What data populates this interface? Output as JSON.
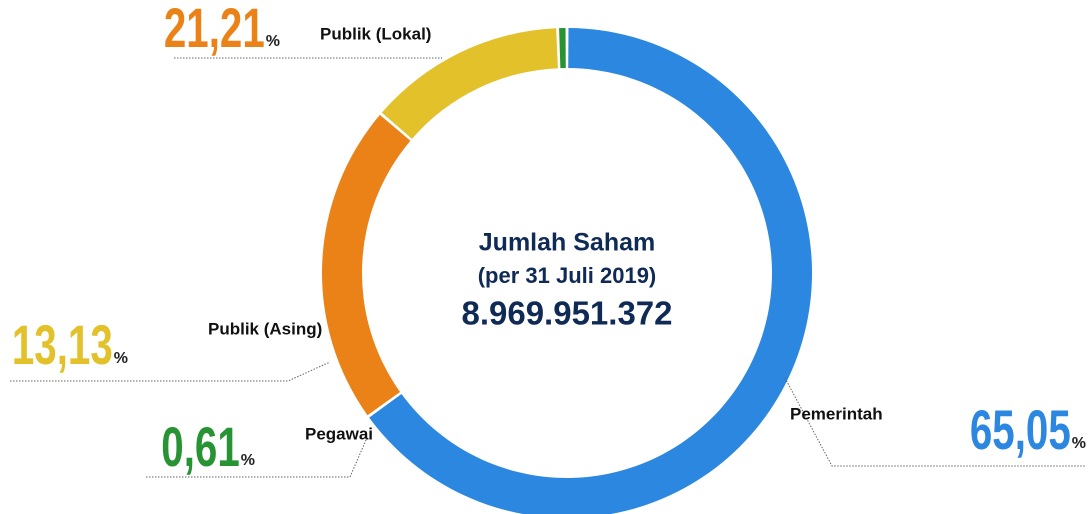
{
  "chart_data": {
    "type": "pie",
    "donut": true,
    "center_title": "Jumlah Saham",
    "center_subtitle": "(per 31 Juli 2019)",
    "center_value": "8.969.951.372",
    "unit": "%",
    "categories": [
      "Pemerintah",
      "Publik (Lokal)",
      "Publik (Asing)",
      "Pegawai"
    ],
    "values": [
      65.05,
      21.21,
      13.13,
      0.61
    ],
    "value_labels": [
      "65,05",
      "21,21",
      "13,13",
      "0,61"
    ],
    "colors": [
      "#2b87df",
      "#eb8218",
      "#e2c12a",
      "#279332"
    ]
  }
}
